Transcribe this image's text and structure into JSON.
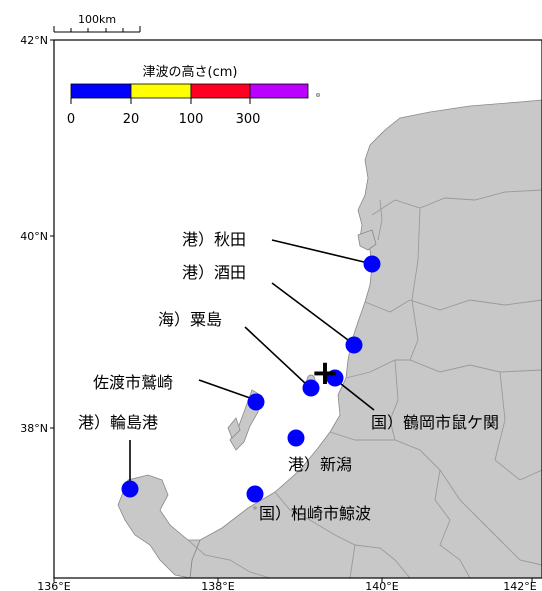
{
  "scale_bar": {
    "label": "100km"
  },
  "legend": {
    "title": "津波の高さ(cm)",
    "ticks": [
      "0",
      "20",
      "100",
      "300"
    ],
    "bins": [
      {
        "color": "#0000ff"
      },
      {
        "color": "#ffff00"
      },
      {
        "color": "#ff0022"
      },
      {
        "color": "#bb00ff"
      }
    ]
  },
  "axes": {
    "lat_labels": [
      "42°N",
      "40°N",
      "38°N"
    ],
    "lon_labels": [
      "136°E",
      "138°E",
      "140°E",
      "142°E"
    ]
  },
  "colors": {
    "land": "#c8c8c8",
    "sea": "#ffffff",
    "border": "#9a9a9a",
    "station": "#0000ff",
    "epicenter": "#000000"
  },
  "epicenter": {
    "symbol": "+"
  },
  "stations": [
    {
      "label": "港）秋田",
      "lat": 39.75,
      "lon": 140.05,
      "height_bin": "0-20"
    },
    {
      "label": "港）酒田",
      "lat": 38.92,
      "lon": 139.82,
      "height_bin": "0-20"
    },
    {
      "label": "海）粟島",
      "lat": 38.47,
      "lon": 139.25,
      "height_bin": "0-20"
    },
    {
      "label": "国）鶴岡市鼠ケ関",
      "lat": 38.55,
      "lon": 139.55,
      "height_bin": "0-20"
    },
    {
      "label": "佐渡市鷲崎",
      "lat": 38.33,
      "lon": 138.5,
      "height_bin": "0-20"
    },
    {
      "label": "港）新潟",
      "lat": 37.95,
      "lon": 139.05,
      "height_bin": "0-20"
    },
    {
      "label": "港）輪島港",
      "lat": 37.4,
      "lon": 136.9,
      "height_bin": "0-20"
    },
    {
      "label": "国）柏崎市鯨波",
      "lat": 37.35,
      "lon": 138.5,
      "height_bin": "0-20"
    }
  ]
}
